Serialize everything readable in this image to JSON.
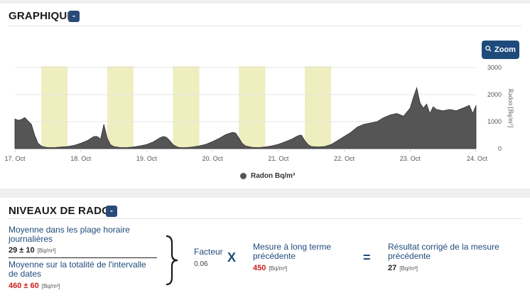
{
  "graph_panel": {
    "title": "GRAPHIQUE",
    "collapse_label": "-",
    "zoom_label": "Zoom",
    "legend_label": "Radon Bq/m³"
  },
  "chart_data": {
    "type": "area",
    "title": "",
    "xlabel": "",
    "ylabel": "Radon [Bq/m³]",
    "ylim": [
      0,
      3000
    ],
    "y_ticks": [
      "0",
      "1000",
      "2000",
      "3000"
    ],
    "x_tick_labels": [
      "17. Oct",
      "18. Oct",
      "19. Oct",
      "20. Oct",
      "21. Oct",
      "22. Oct",
      "23. Oct",
      "24. Oct"
    ],
    "highlight_bands_days": [
      [
        17.4,
        17.8
      ],
      [
        18.4,
        18.8
      ],
      [
        19.4,
        19.8
      ],
      [
        20.4,
        20.8
      ],
      [
        21.4,
        21.8
      ]
    ],
    "highlight_color": "#eeeebf",
    "series": [
      {
        "name": "Radon Bq/m³",
        "color": "#555555",
        "x_days": [
          17.0,
          17.05,
          17.1,
          17.15,
          17.2,
          17.25,
          17.3,
          17.35,
          17.4,
          17.45,
          17.5,
          17.6,
          17.7,
          17.8,
          17.9,
          18.0,
          18.1,
          18.2,
          18.25,
          18.3,
          18.35,
          18.4,
          18.45,
          18.5,
          18.6,
          18.7,
          18.8,
          18.9,
          19.0,
          19.1,
          19.2,
          19.25,
          19.3,
          19.35,
          19.4,
          19.45,
          19.5,
          19.6,
          19.7,
          19.8,
          19.9,
          20.0,
          20.1,
          20.2,
          20.3,
          20.35,
          20.4,
          20.45,
          20.5,
          20.6,
          20.7,
          20.8,
          20.9,
          21.0,
          21.1,
          21.2,
          21.3,
          21.35,
          21.4,
          21.45,
          21.5,
          21.6,
          21.7,
          21.8,
          21.9,
          22.0,
          22.1,
          22.2,
          22.3,
          22.4,
          22.5,
          22.6,
          22.7,
          22.8,
          22.9,
          22.95,
          23.0,
          23.05,
          23.1,
          23.15,
          23.2,
          23.25,
          23.3,
          23.35,
          23.4,
          23.5,
          23.6,
          23.7,
          23.8,
          23.9,
          23.95,
          24.0
        ],
        "values": [
          1100,
          1050,
          1080,
          1150,
          1020,
          900,
          500,
          200,
          100,
          60,
          40,
          40,
          60,
          80,
          120,
          200,
          300,
          450,
          450,
          350,
          900,
          400,
          150,
          80,
          40,
          40,
          60,
          100,
          150,
          250,
          400,
          450,
          420,
          300,
          150,
          80,
          40,
          40,
          60,
          100,
          160,
          260,
          380,
          520,
          600,
          580,
          400,
          200,
          100,
          50,
          40,
          60,
          100,
          160,
          250,
          350,
          480,
          500,
          300,
          150,
          80,
          60,
          80,
          150,
          300,
          450,
          600,
          800,
          900,
          950,
          1000,
          1150,
          1250,
          1300,
          1200,
          1350,
          1500,
          1900,
          2250,
          1700,
          1500,
          1650,
          1300,
          1550,
          1450,
          1400,
          1450,
          1400,
          1500,
          1600,
          1300,
          1600
        ]
      }
    ]
  },
  "radon_panel": {
    "title": "NIVEAUX DE RADON",
    "collapse_label": "-",
    "avg_hours_label": "Moyenne dans les plage horaire journalières",
    "avg_hours_value": "29 ± 10",
    "avg_hours_unit": "[Bq/m³]",
    "avg_total_label": "Moyenne sur la totalité de l'intervalle de dates",
    "avg_total_value": "460 ± 60",
    "avg_total_unit": "[Bq/m³]",
    "factor_label": "Facteur",
    "factor_value": "0.06",
    "times_symbol": "X",
    "long_term_label": "Mesure à long terme précédente",
    "long_term_value": "450",
    "long_term_unit": "[Bq/m³]",
    "equals_symbol": "=",
    "result_label": "Résultat corrigé de la mesure précédente",
    "result_value": "27",
    "result_unit": "[Bq/m³]",
    "red_color": "#cc1f1f",
    "accent_color": "#1f4b7c"
  }
}
